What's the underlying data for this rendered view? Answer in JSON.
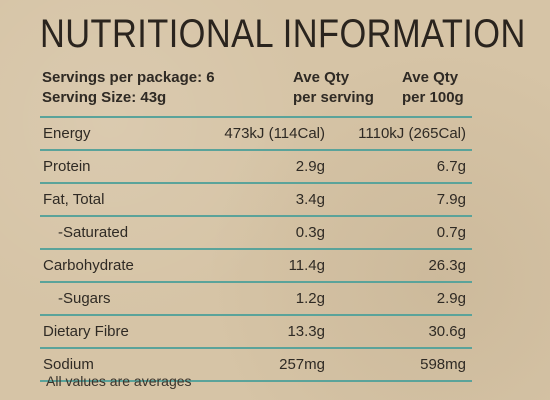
{
  "title": "NUTRITIONAL INFORMATION",
  "header": {
    "servings_per_package": "Servings per package: 6",
    "serving_size": "Serving Size: 43g",
    "col_serving_line1": "Ave Qty",
    "col_serving_line2": "per serving",
    "col_100g_line1": "Ave Qty",
    "col_100g_line2": "per 100g"
  },
  "rows": [
    {
      "label": "Energy",
      "per_serving": "473kJ (114Cal)",
      "per_100g": "1110kJ (265Cal)"
    },
    {
      "label": "Protein",
      "per_serving": "2.9g",
      "per_100g": "6.7g"
    },
    {
      "label": "Fat, Total",
      "per_serving": "3.4g",
      "per_100g": "7.9g"
    },
    {
      "label": "-Saturated",
      "per_serving": "0.3g",
      "per_100g": "0.7g"
    },
    {
      "label": "Carbohydrate",
      "per_serving": "11.4g",
      "per_100g": "26.3g"
    },
    {
      "label": "-Sugars",
      "per_serving": "1.2g",
      "per_100g": "2.9g"
    },
    {
      "label": "Dietary Fibre",
      "per_serving": "13.3g",
      "per_100g": "30.6g"
    },
    {
      "label": "Sodium",
      "per_serving": "257mg",
      "per_100g": "598mg"
    }
  ],
  "footnote": "All values are averages",
  "colors": {
    "background": "#d6c4a6",
    "rule": "#5aa39a",
    "text": "#2f2a24"
  }
}
